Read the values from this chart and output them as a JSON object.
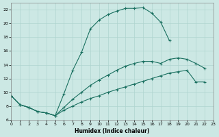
{
  "xlabel": "Humidex (Indice chaleur)",
  "xlim": [
    0,
    23
  ],
  "ylim": [
    6,
    23
  ],
  "xticks": [
    0,
    1,
    2,
    3,
    4,
    5,
    6,
    7,
    8,
    9,
    10,
    11,
    12,
    13,
    14,
    15,
    16,
    17,
    18,
    19,
    20,
    21,
    22,
    23
  ],
  "yticks": [
    6,
    8,
    10,
    12,
    14,
    16,
    18,
    20,
    22
  ],
  "bg_color": "#cce8e4",
  "grid_color": "#afd4cf",
  "line_color": "#1a7060",
  "line1_x": [
    0,
    1,
    2,
    3,
    4,
    5,
    6,
    7,
    8,
    9,
    10,
    11,
    12,
    13,
    14,
    15,
    16,
    17,
    18
  ],
  "line1_y": [
    9.5,
    8.2,
    7.8,
    7.2,
    7.0,
    6.6,
    9.8,
    13.2,
    15.8,
    19.2,
    20.5,
    21.3,
    21.8,
    22.2,
    22.2,
    22.3,
    21.5,
    20.2,
    17.5
  ],
  "line2_x": [
    0,
    1,
    2,
    3,
    4,
    5,
    6,
    7,
    8,
    9,
    10,
    11,
    12,
    13,
    14,
    15,
    16,
    17,
    18,
    19,
    20,
    21,
    22
  ],
  "line2_y": [
    9.5,
    8.2,
    7.8,
    7.2,
    7.0,
    6.6,
    7.4,
    8.0,
    8.6,
    9.1,
    9.5,
    10.0,
    10.4,
    10.8,
    11.2,
    11.6,
    12.0,
    12.4,
    12.8,
    13.0,
    13.2,
    11.5,
    11.5
  ],
  "line3_x": [
    0,
    1,
    2,
    3,
    4,
    5,
    6,
    7,
    8,
    9,
    10,
    11,
    12,
    13,
    14,
    15,
    16,
    17,
    18,
    19,
    20,
    21,
    22
  ],
  "line3_y": [
    9.5,
    8.2,
    7.8,
    7.2,
    7.0,
    6.6,
    7.8,
    9.0,
    10.0,
    11.0,
    11.8,
    12.5,
    13.2,
    13.8,
    14.2,
    14.5,
    14.5,
    14.2,
    14.8,
    15.0,
    14.8,
    14.2,
    13.5
  ]
}
